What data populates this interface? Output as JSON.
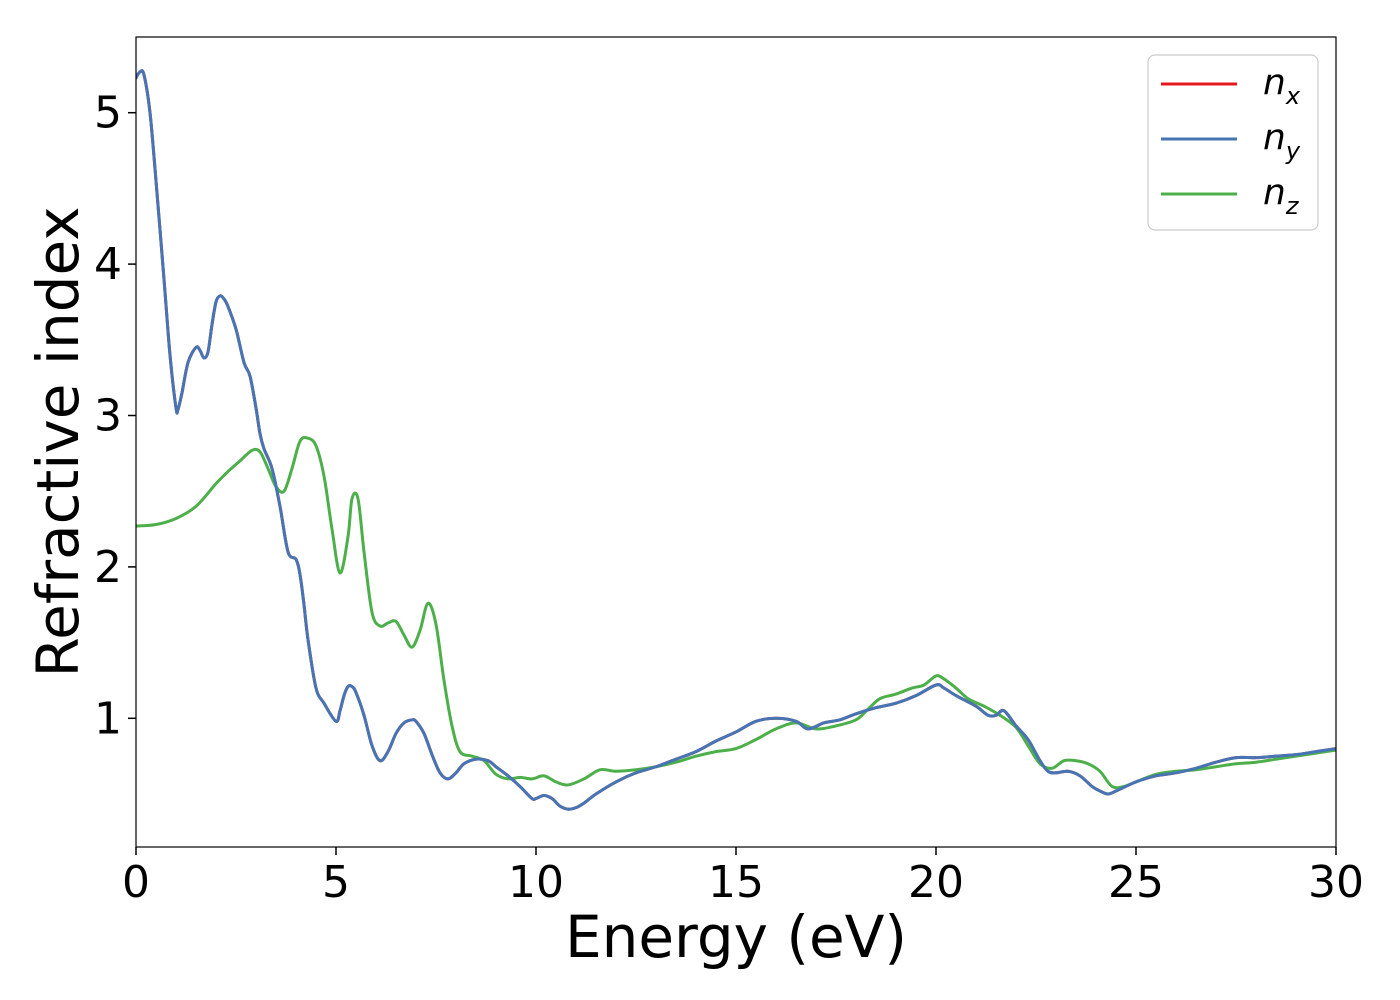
{
  "chart_data": {
    "type": "line",
    "xlabel": "Energy (eV)",
    "ylabel": "Refractive index",
    "xlim": [
      0,
      30
    ],
    "ylim": [
      0.15,
      5.5
    ],
    "xticks": [
      0,
      5,
      10,
      15,
      20,
      25,
      30
    ],
    "yticks": [
      1,
      2,
      3,
      4,
      5
    ],
    "grid": false,
    "legend_position": "top-right",
    "series": [
      {
        "name": "n_x",
        "label_base": "n",
        "label_sub": "x",
        "color": "#e41a1c",
        "x": [
          0,
          0.1,
          0.2,
          0.35,
          0.5,
          0.7,
          0.85,
          1.0,
          1.05,
          1.15,
          1.3,
          1.5,
          1.6,
          1.7,
          1.8,
          1.9,
          2.0,
          2.1,
          2.2,
          2.3,
          2.5,
          2.7,
          2.85,
          3.0,
          3.1,
          3.2,
          3.4,
          3.6,
          3.8,
          4.0,
          4.1,
          4.2,
          4.3,
          4.5,
          4.7,
          5.0,
          5.1,
          5.2,
          5.3,
          5.4,
          5.5,
          5.7,
          5.9,
          6.1,
          6.3,
          6.5,
          6.7,
          6.9,
          7.0,
          7.2,
          7.4,
          7.6,
          7.8,
          8.0,
          8.2,
          8.5,
          8.8,
          9.0,
          9.3,
          9.6,
          9.9,
          10.0,
          10.2,
          10.4,
          10.6,
          10.8,
          11.0,
          11.2,
          11.5,
          12.0,
          12.5,
          13.0,
          13.5,
          14.0,
          14.5,
          15.0,
          15.5,
          16.0,
          16.5,
          16.8,
          17.2,
          17.6,
          18.0,
          18.5,
          19.0,
          19.5,
          20.0,
          20.2,
          20.5,
          21.0,
          21.3,
          21.5,
          21.7,
          22.0,
          22.3,
          22.6,
          22.8,
          23.0,
          23.3,
          23.6,
          23.9,
          24.1,
          24.3,
          24.5,
          25.0,
          25.5,
          26.0,
          26.5,
          27.0,
          27.5,
          28.0,
          28.5,
          29.0,
          29.5,
          30.0
        ],
        "y": [
          5.23,
          5.27,
          5.25,
          5.0,
          4.55,
          3.9,
          3.4,
          3.05,
          3.04,
          3.15,
          3.35,
          3.45,
          3.43,
          3.38,
          3.42,
          3.6,
          3.75,
          3.79,
          3.77,
          3.72,
          3.57,
          3.35,
          3.26,
          3.05,
          2.88,
          2.78,
          2.65,
          2.4,
          2.1,
          2.05,
          1.95,
          1.75,
          1.52,
          1.2,
          1.1,
          0.98,
          1.05,
          1.15,
          1.21,
          1.21,
          1.17,
          1.02,
          0.82,
          0.72,
          0.78,
          0.9,
          0.97,
          0.99,
          0.98,
          0.9,
          0.76,
          0.64,
          0.6,
          0.64,
          0.7,
          0.73,
          0.72,
          0.68,
          0.62,
          0.55,
          0.47,
          0.47,
          0.49,
          0.47,
          0.42,
          0.4,
          0.41,
          0.44,
          0.5,
          0.58,
          0.64,
          0.68,
          0.73,
          0.78,
          0.85,
          0.91,
          0.98,
          1.0,
          0.98,
          0.93,
          0.97,
          0.99,
          1.03,
          1.07,
          1.1,
          1.15,
          1.22,
          1.2,
          1.15,
          1.08,
          1.02,
          1.02,
          1.05,
          0.95,
          0.86,
          0.72,
          0.65,
          0.64,
          0.65,
          0.62,
          0.55,
          0.52,
          0.5,
          0.52,
          0.58,
          0.62,
          0.64,
          0.67,
          0.71,
          0.74,
          0.74,
          0.75,
          0.76,
          0.78,
          0.8
        ]
      },
      {
        "name": "n_y",
        "label_base": "n",
        "label_sub": "y",
        "color": "#4575b4",
        "x": [
          0,
          0.1,
          0.2,
          0.35,
          0.5,
          0.7,
          0.85,
          1.0,
          1.05,
          1.15,
          1.3,
          1.5,
          1.6,
          1.7,
          1.8,
          1.9,
          2.0,
          2.1,
          2.2,
          2.3,
          2.5,
          2.7,
          2.85,
          3.0,
          3.1,
          3.2,
          3.4,
          3.6,
          3.8,
          4.0,
          4.1,
          4.2,
          4.3,
          4.5,
          4.7,
          5.0,
          5.1,
          5.2,
          5.3,
          5.4,
          5.5,
          5.7,
          5.9,
          6.1,
          6.3,
          6.5,
          6.7,
          6.9,
          7.0,
          7.2,
          7.4,
          7.6,
          7.8,
          8.0,
          8.2,
          8.5,
          8.8,
          9.0,
          9.3,
          9.6,
          9.9,
          10.0,
          10.2,
          10.4,
          10.6,
          10.8,
          11.0,
          11.2,
          11.5,
          12.0,
          12.5,
          13.0,
          13.5,
          14.0,
          14.5,
          15.0,
          15.5,
          16.0,
          16.5,
          16.8,
          17.2,
          17.6,
          18.0,
          18.5,
          19.0,
          19.5,
          20.0,
          20.2,
          20.5,
          21.0,
          21.3,
          21.5,
          21.7,
          22.0,
          22.3,
          22.6,
          22.8,
          23.0,
          23.3,
          23.6,
          23.9,
          24.1,
          24.3,
          24.5,
          25.0,
          25.5,
          26.0,
          26.5,
          27.0,
          27.5,
          28.0,
          28.5,
          29.0,
          29.5,
          30.0
        ],
        "y": [
          5.23,
          5.27,
          5.25,
          5.0,
          4.55,
          3.9,
          3.4,
          3.05,
          3.04,
          3.15,
          3.35,
          3.45,
          3.43,
          3.38,
          3.42,
          3.6,
          3.75,
          3.79,
          3.77,
          3.72,
          3.57,
          3.35,
          3.26,
          3.05,
          2.88,
          2.78,
          2.65,
          2.4,
          2.1,
          2.05,
          1.95,
          1.75,
          1.52,
          1.2,
          1.1,
          0.98,
          1.05,
          1.15,
          1.21,
          1.21,
          1.17,
          1.02,
          0.82,
          0.72,
          0.78,
          0.9,
          0.97,
          0.99,
          0.98,
          0.9,
          0.76,
          0.64,
          0.6,
          0.64,
          0.7,
          0.73,
          0.72,
          0.68,
          0.62,
          0.55,
          0.47,
          0.47,
          0.49,
          0.47,
          0.42,
          0.4,
          0.41,
          0.44,
          0.5,
          0.58,
          0.64,
          0.68,
          0.73,
          0.78,
          0.85,
          0.91,
          0.98,
          1.0,
          0.98,
          0.93,
          0.97,
          0.99,
          1.03,
          1.07,
          1.1,
          1.15,
          1.22,
          1.2,
          1.15,
          1.08,
          1.02,
          1.02,
          1.05,
          0.95,
          0.86,
          0.72,
          0.65,
          0.64,
          0.65,
          0.62,
          0.55,
          0.52,
          0.5,
          0.52,
          0.58,
          0.62,
          0.64,
          0.67,
          0.71,
          0.74,
          0.74,
          0.75,
          0.76,
          0.78,
          0.8
        ]
      },
      {
        "name": "n_z",
        "label_base": "n",
        "label_sub": "z",
        "color": "#4daf4a",
        "x": [
          0,
          0.5,
          1.0,
          1.5,
          2.0,
          2.3,
          2.6,
          2.9,
          3.1,
          3.3,
          3.5,
          3.7,
          3.9,
          4.1,
          4.3,
          4.5,
          4.7,
          4.9,
          5.1,
          5.3,
          5.4,
          5.55,
          5.7,
          5.9,
          6.1,
          6.3,
          6.5,
          6.7,
          6.9,
          7.1,
          7.3,
          7.5,
          7.7,
          7.9,
          8.1,
          8.4,
          8.7,
          9.0,
          9.3,
          9.6,
          9.9,
          10.2,
          10.5,
          10.8,
          11.2,
          11.6,
          12.0,
          12.5,
          13.0,
          13.5,
          14.0,
          14.5,
          15.0,
          15.5,
          16.0,
          16.5,
          17.0,
          17.5,
          18.0,
          18.3,
          18.6,
          19.0,
          19.4,
          19.7,
          20.0,
          20.2,
          20.5,
          20.8,
          21.2,
          21.6,
          22.0,
          22.3,
          22.6,
          22.9,
          23.2,
          23.5,
          23.8,
          24.1,
          24.4,
          24.7,
          25.0,
          25.5,
          26.0,
          26.5,
          27.0,
          27.5,
          28.0,
          28.5,
          29.0,
          29.5,
          30.0
        ],
        "y": [
          2.27,
          2.28,
          2.32,
          2.4,
          2.55,
          2.63,
          2.7,
          2.77,
          2.76,
          2.65,
          2.53,
          2.5,
          2.65,
          2.83,
          2.85,
          2.8,
          2.6,
          2.25,
          1.96,
          2.2,
          2.45,
          2.45,
          2.1,
          1.7,
          1.61,
          1.63,
          1.64,
          1.55,
          1.47,
          1.58,
          1.76,
          1.62,
          1.25,
          0.95,
          0.78,
          0.75,
          0.72,
          0.63,
          0.6,
          0.61,
          0.6,
          0.62,
          0.58,
          0.56,
          0.6,
          0.66,
          0.65,
          0.66,
          0.68,
          0.71,
          0.75,
          0.78,
          0.8,
          0.86,
          0.93,
          0.97,
          0.93,
          0.95,
          0.99,
          1.06,
          1.13,
          1.16,
          1.2,
          1.22,
          1.28,
          1.26,
          1.2,
          1.13,
          1.08,
          1.02,
          0.94,
          0.82,
          0.7,
          0.67,
          0.72,
          0.72,
          0.7,
          0.65,
          0.55,
          0.55,
          0.58,
          0.63,
          0.65,
          0.66,
          0.68,
          0.7,
          0.71,
          0.73,
          0.75,
          0.77,
          0.79
        ]
      }
    ]
  }
}
